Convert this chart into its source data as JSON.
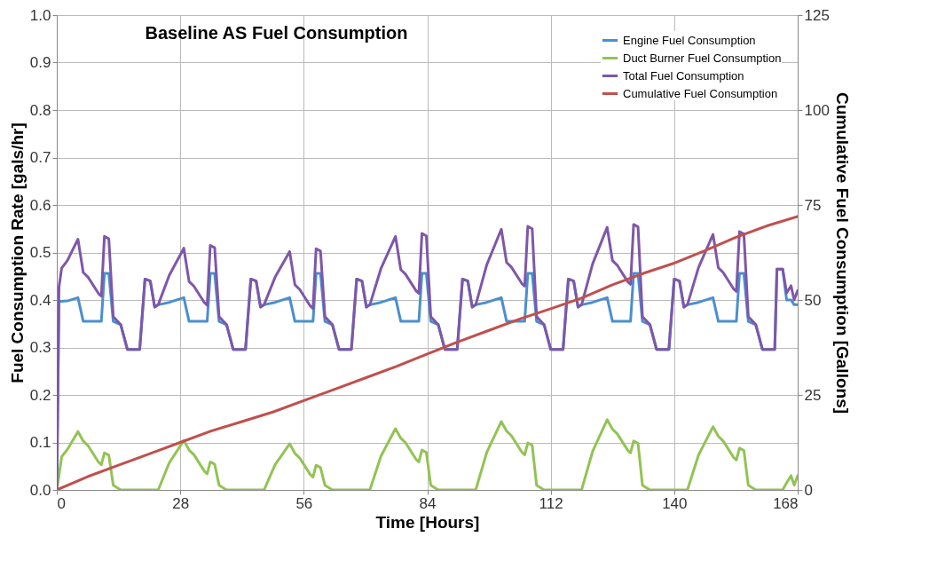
{
  "chart_data": {
    "type": "line",
    "title": "Baseline AS Fuel Consumption",
    "xlabel": "Time [Hours]",
    "ylabel": "Fuel Consumption Rate [gals/hr]",
    "y2label": "Cumulative Fuel Consumption [Gallons]",
    "x": [
      0,
      0.5,
      1.1,
      2.4,
      4.8,
      6,
      7.1,
      9.5,
      10.1,
      10.8,
      11.8,
      12.8,
      14.5,
      16,
      18.8,
      20,
      21.2,
      22.2,
      23,
      25.5,
      28.8,
      30,
      31.1,
      33.5,
      34.1,
      34.8,
      35.8,
      36.8,
      38.5,
      40,
      42.8,
      44,
      45.2,
      46.2,
      47,
      49.5,
      52.8,
      54,
      55.1,
      57.5,
      58.1,
      58.8,
      59.8,
      60.8,
      62.5,
      64,
      66.8,
      68,
      69.2,
      70.2,
      71,
      73.5,
      76.8,
      78,
      79.1,
      81.5,
      82.1,
      82.8,
      83.8,
      84.8,
      86.5,
      88,
      90.8,
      92,
      93.2,
      94.2,
      95,
      97.5,
      100.8,
      102,
      103.1,
      105.5,
      106.1,
      106.8,
      107.8,
      108.8,
      110.5,
      112,
      114.8,
      116,
      117.2,
      118.2,
      119,
      121.5,
      124.8,
      126,
      127.1,
      129.5,
      130.1,
      130.8,
      131.8,
      132.8,
      134.5,
      136,
      138.8,
      140,
      141.2,
      142.2,
      143,
      145.5,
      148.8,
      150,
      151.1,
      153.5,
      154.1,
      154.8,
      155.8,
      156.8,
      158.5,
      160,
      162.8,
      163.3,
      164.6,
      165.5,
      166.5,
      167.2,
      168
    ],
    "series": [
      {
        "name": "Engine Fuel Consumption",
        "color": "#4a8fd0",
        "values": [
          0,
          0.397,
          0.397,
          0.398,
          0.405,
          0.355,
          0.355,
          0.355,
          0.355,
          0.456,
          0.456,
          0.355,
          0.348,
          0.296,
          0.296,
          0.444,
          0.44,
          0.385,
          0.39,
          0.395,
          0.405,
          0.355,
          0.355,
          0.355,
          0.355,
          0.456,
          0.456,
          0.355,
          0.348,
          0.296,
          0.296,
          0.444,
          0.44,
          0.385,
          0.39,
          0.395,
          0.405,
          0.355,
          0.355,
          0.355,
          0.355,
          0.456,
          0.456,
          0.355,
          0.348,
          0.296,
          0.296,
          0.444,
          0.44,
          0.385,
          0.39,
          0.395,
          0.405,
          0.355,
          0.355,
          0.355,
          0.355,
          0.456,
          0.456,
          0.355,
          0.348,
          0.296,
          0.296,
          0.444,
          0.44,
          0.385,
          0.39,
          0.395,
          0.405,
          0.355,
          0.355,
          0.355,
          0.355,
          0.456,
          0.456,
          0.355,
          0.348,
          0.296,
          0.296,
          0.444,
          0.44,
          0.385,
          0.39,
          0.395,
          0.405,
          0.355,
          0.355,
          0.355,
          0.355,
          0.456,
          0.456,
          0.355,
          0.348,
          0.296,
          0.296,
          0.444,
          0.44,
          0.385,
          0.39,
          0.395,
          0.405,
          0.355,
          0.355,
          0.355,
          0.355,
          0.456,
          0.456,
          0.355,
          0.348,
          0.296,
          0.296,
          0.465,
          0.465,
          0.4,
          0.4,
          0.39,
          0.39
        ]
      },
      {
        "name": "Duct Burner Fuel Consumption",
        "color": "#92c353",
        "values": [
          0,
          0.03,
          0.07,
          0.085,
          0.123,
          0.103,
          0.093,
          0.058,
          0.053,
          0.078,
          0.073,
          0.01,
          0,
          0,
          0,
          0,
          0,
          0,
          0,
          0.057,
          0.104,
          0.084,
          0.074,
          0.039,
          0.034,
          0.059,
          0.054,
          0.01,
          0,
          0,
          0,
          0,
          0,
          0,
          0,
          0.053,
          0.097,
          0.077,
          0.067,
          0.032,
          0.027,
          0.052,
          0.047,
          0.01,
          0,
          0,
          0,
          0,
          0,
          0,
          0,
          0.071,
          0.129,
          0.109,
          0.099,
          0.064,
          0.059,
          0.084,
          0.079,
          0.01,
          0,
          0,
          0,
          0,
          0,
          0,
          0,
          0.079,
          0.144,
          0.124,
          0.114,
          0.079,
          0.074,
          0.099,
          0.094,
          0.01,
          0,
          0,
          0,
          0,
          0,
          0,
          0,
          0.081,
          0.148,
          0.128,
          0.118,
          0.083,
          0.078,
          0.103,
          0.098,
          0.01,
          0,
          0,
          0,
          0,
          0,
          0,
          0,
          0.073,
          0.133,
          0.113,
          0.103,
          0.068,
          0.063,
          0.088,
          0.083,
          0.01,
          0,
          0,
          0,
          0,
          0,
          0.015,
          0.03,
          0.01,
          0.03
        ]
      },
      {
        "name": "Total Fuel Consumption",
        "color": "#7e57a8",
        "values": [
          0,
          0.427,
          0.467,
          0.483,
          0.528,
          0.458,
          0.448,
          0.413,
          0.408,
          0.534,
          0.529,
          0.365,
          0.348,
          0.296,
          0.296,
          0.444,
          0.44,
          0.385,
          0.39,
          0.452,
          0.509,
          0.439,
          0.429,
          0.394,
          0.389,
          0.515,
          0.51,
          0.365,
          0.348,
          0.296,
          0.296,
          0.444,
          0.44,
          0.385,
          0.39,
          0.448,
          0.502,
          0.432,
          0.422,
          0.387,
          0.382,
          0.508,
          0.503,
          0.365,
          0.348,
          0.296,
          0.296,
          0.444,
          0.44,
          0.385,
          0.39,
          0.466,
          0.534,
          0.464,
          0.454,
          0.419,
          0.414,
          0.54,
          0.535,
          0.365,
          0.348,
          0.296,
          0.296,
          0.444,
          0.44,
          0.385,
          0.39,
          0.474,
          0.549,
          0.479,
          0.469,
          0.434,
          0.429,
          0.555,
          0.55,
          0.365,
          0.348,
          0.296,
          0.296,
          0.444,
          0.44,
          0.385,
          0.39,
          0.476,
          0.553,
          0.483,
          0.473,
          0.438,
          0.433,
          0.559,
          0.554,
          0.365,
          0.348,
          0.296,
          0.296,
          0.444,
          0.44,
          0.385,
          0.39,
          0.468,
          0.538,
          0.468,
          0.458,
          0.423,
          0.418,
          0.544,
          0.539,
          0.365,
          0.348,
          0.296,
          0.296,
          0.465,
          0.465,
          0.415,
          0.43,
          0.4,
          0.42
        ]
      },
      {
        "name": "Cumulative Fuel Consumption",
        "color": "#c0504d",
        "axis": "y2",
        "x": [
          0,
          7,
          14,
          21,
          28,
          35,
          42,
          49,
          56,
          63,
          70,
          77,
          84,
          91,
          98,
          105,
          112,
          119,
          126,
          133,
          140,
          147,
          154,
          161,
          168
        ],
        "values": [
          0,
          3.5,
          6.5,
          9.5,
          12.5,
          15.5,
          18,
          20.5,
          23.5,
          26.5,
          29.5,
          32.5,
          35.8,
          39,
          42,
          45,
          47.7,
          50.5,
          54,
          57,
          59.7,
          63,
          66.5,
          69.5,
          72
        ]
      }
    ],
    "xlim": [
      0,
      168
    ],
    "xticks": [
      0,
      28,
      56,
      84,
      112,
      140,
      168
    ],
    "ylim": [
      0,
      1
    ],
    "yticks": [
      {
        "value": 0,
        "label": "0.0"
      },
      0.1,
      0.2,
      0.3,
      0.4,
      0.5,
      0.6,
      0.7,
      0.8,
      0.9,
      {
        "value": 1,
        "label": "1.0"
      }
    ],
    "y2lim": [
      0,
      125
    ],
    "y2ticks": [
      0,
      25,
      50,
      75,
      100,
      125
    ],
    "grid": true,
    "legend": "top right",
    "marker": "none",
    "line_style": "solid"
  }
}
